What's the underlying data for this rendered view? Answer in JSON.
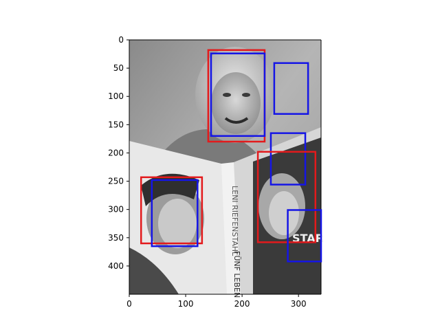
{
  "figure": {
    "photo_subject": "grayscale photo of a smiling older woman holding an open book with face portraits on its cover",
    "book_spine_text_1": "LENI RIEFENSTAHL",
    "book_spine_text_2": "FÜNF LEBEN",
    "book_cover_text_right": "LENI RIEFENSTAHL FÜNF LEBEN",
    "book_cover_text_star": "STAR"
  },
  "colors": {
    "box_red": "#e31a1c",
    "box_blue": "#1515e6",
    "background": "#ffffff"
  },
  "chart_data": {
    "type": "image-with-bounding-boxes",
    "xlim": [
      0,
      340
    ],
    "ylim": [
      450,
      0
    ],
    "x_ticks": [
      0,
      100,
      200,
      300
    ],
    "y_ticks": [
      0,
      50,
      100,
      150,
      200,
      250,
      300,
      350,
      400
    ],
    "grid": false,
    "boxes": [
      {
        "color": "red",
        "x0": 140,
        "y0": 18,
        "x1": 240,
        "y1": 180
      },
      {
        "color": "blue",
        "x0": 145,
        "y0": 24,
        "x1": 240,
        "y1": 170
      },
      {
        "color": "blue",
        "x0": 257,
        "y0": 41,
        "x1": 317,
        "y1": 131
      },
      {
        "color": "blue",
        "x0": 251,
        "y0": 165,
        "x1": 312,
        "y1": 256
      },
      {
        "color": "red",
        "x0": 228,
        "y0": 198,
        "x1": 330,
        "y1": 358
      },
      {
        "color": "red",
        "x0": 21,
        "y0": 243,
        "x1": 129,
        "y1": 360
      },
      {
        "color": "blue",
        "x0": 40,
        "y0": 248,
        "x1": 121,
        "y1": 365
      },
      {
        "color": "blue",
        "x0": 281,
        "y0": 301,
        "x1": 340,
        "y1": 392
      }
    ]
  }
}
